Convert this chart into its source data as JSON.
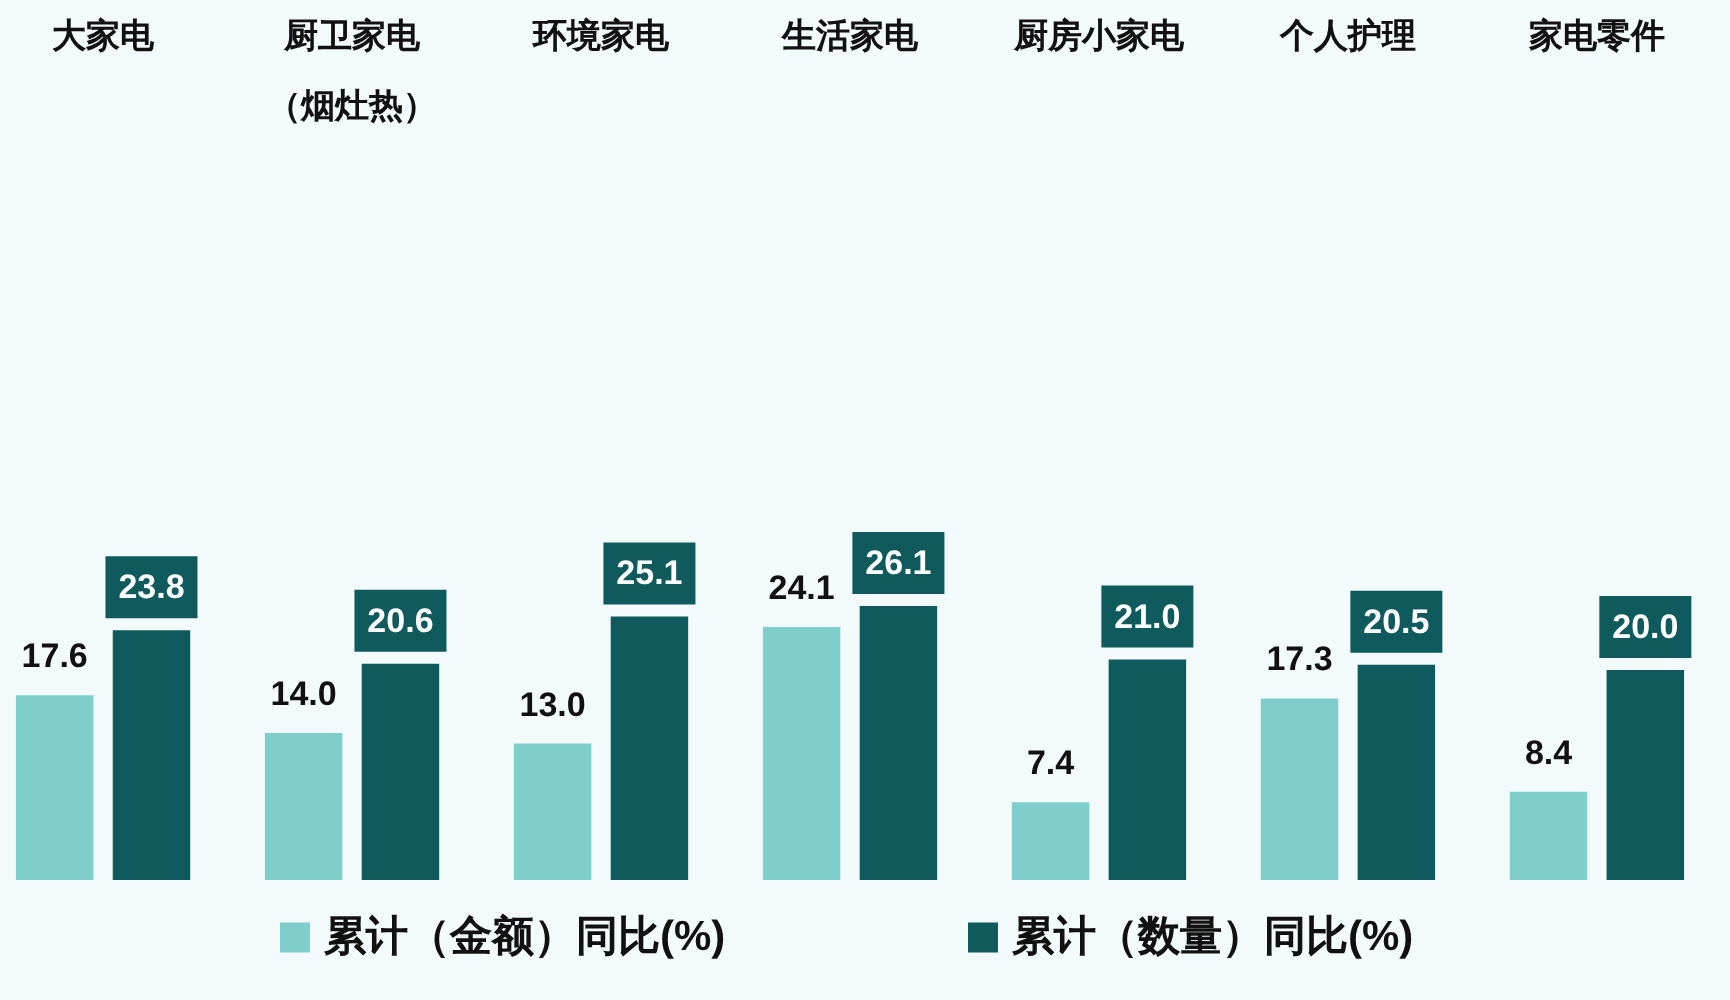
{
  "chart_data": {
    "type": "bar",
    "categories": [
      "大家电",
      "厨卫家电（烟灶热）",
      "环境家电",
      "生活家电",
      "厨房小家电",
      "个人护理",
      "家电零件"
    ],
    "series": [
      {
        "name": "累计（金额）同比(%)",
        "color": "#7ecfcb",
        "values": [
          17.6,
          14.0,
          13.0,
          24.1,
          7.4,
          17.3,
          8.4
        ],
        "value_labels": [
          "17.6",
          "14.0",
          "13.0",
          "24.1",
          "7.4",
          "17.3",
          "8.4"
        ]
      },
      {
        "name": "累计（数量）同比(%)",
        "color": "#0e5a5c",
        "values": [
          23.8,
          20.6,
          25.1,
          26.1,
          21.0,
          20.5,
          20.0
        ],
        "value_labels": [
          "23.8",
          "20.6",
          "25.1",
          "26.1",
          "21.0",
          "20.5",
          "20.0"
        ]
      }
    ],
    "legend": "bottom",
    "tick_labels": "x"
  }
}
